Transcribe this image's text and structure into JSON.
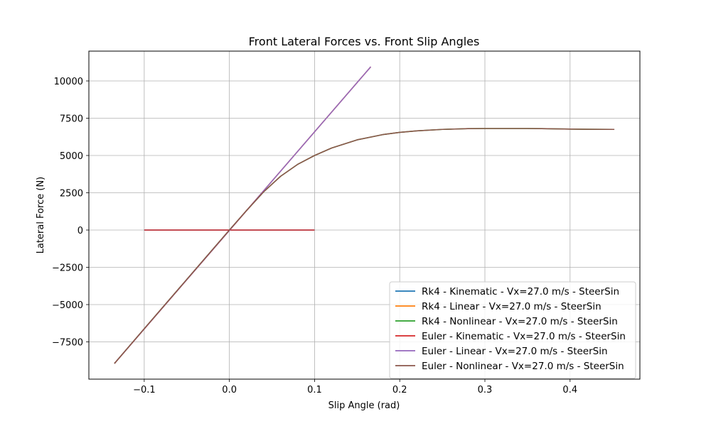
{
  "chart_data": {
    "type": "line",
    "title": "Front Lateral Forces vs. Front Slip Angles",
    "xlabel": "Slip Angle (rad)",
    "ylabel": "Lateral Force (N)",
    "xlim": [
      -0.165,
      0.482
    ],
    "ylim": [
      -10000,
      12000
    ],
    "xticks": [
      -0.1,
      0.0,
      0.1,
      0.2,
      0.3,
      0.4
    ],
    "xtick_labels": [
      "−0.1",
      "0.0",
      "0.1",
      "0.2",
      "0.3",
      "0.4"
    ],
    "yticks": [
      -7500,
      -5000,
      -2500,
      0,
      2500,
      5000,
      7500,
      10000
    ],
    "ytick_labels": [
      "−7500",
      "−5000",
      "−2500",
      "0",
      "2500",
      "5000",
      "7500",
      "10000"
    ],
    "grid": true,
    "legend_position": "lower-right",
    "series": [
      {
        "name": "Rk4 - Kinematic - Vx=27.0 m/s - SteerSin",
        "color": "#1f77b4",
        "x": [
          -0.1,
          0.1
        ],
        "y": [
          0,
          0
        ]
      },
      {
        "name": "Rk4 - Linear - Vx=27.0 m/s - SteerSin",
        "color": "#ff7f0e",
        "x": [
          -0.135,
          0.166
        ],
        "y": [
          -8950,
          10950
        ]
      },
      {
        "name": "Rk4 - Nonlinear - Vx=27.0 m/s - SteerSin",
        "color": "#2ca02c",
        "x": [
          -0.135,
          -0.1,
          -0.05,
          0.0,
          0.02,
          0.04,
          0.06,
          0.08,
          0.1,
          0.12,
          0.15,
          0.18,
          0.2,
          0.22,
          0.25,
          0.28,
          0.3,
          0.35,
          0.38,
          0.4,
          0.42,
          0.452
        ],
        "y": [
          -8950,
          -6620,
          -3310,
          0,
          1300,
          2550,
          3600,
          4400,
          5000,
          5500,
          6050,
          6400,
          6550,
          6650,
          6750,
          6800,
          6810,
          6810,
          6790,
          6770,
          6760,
          6750
        ]
      },
      {
        "name": "Euler - Kinematic - Vx=27.0 m/s - SteerSin",
        "color": "#d62728",
        "x": [
          -0.1,
          0.1
        ],
        "y": [
          0,
          0
        ]
      },
      {
        "name": "Euler - Linear - Vx=27.0 m/s - SteerSin",
        "color": "#9467bd",
        "x": [
          -0.135,
          0.166
        ],
        "y": [
          -8950,
          10950
        ]
      },
      {
        "name": "Euler - Nonlinear - Vx=27.0 m/s - SteerSin",
        "color": "#8c564b",
        "x": [
          -0.135,
          -0.1,
          -0.05,
          0.0,
          0.02,
          0.04,
          0.06,
          0.08,
          0.1,
          0.12,
          0.15,
          0.18,
          0.2,
          0.22,
          0.25,
          0.28,
          0.3,
          0.35,
          0.38,
          0.4,
          0.42,
          0.452
        ],
        "y": [
          -8950,
          -6620,
          -3310,
          0,
          1300,
          2550,
          3600,
          4400,
          5000,
          5500,
          6050,
          6400,
          6550,
          6650,
          6750,
          6800,
          6810,
          6810,
          6790,
          6770,
          6760,
          6750
        ]
      }
    ]
  }
}
